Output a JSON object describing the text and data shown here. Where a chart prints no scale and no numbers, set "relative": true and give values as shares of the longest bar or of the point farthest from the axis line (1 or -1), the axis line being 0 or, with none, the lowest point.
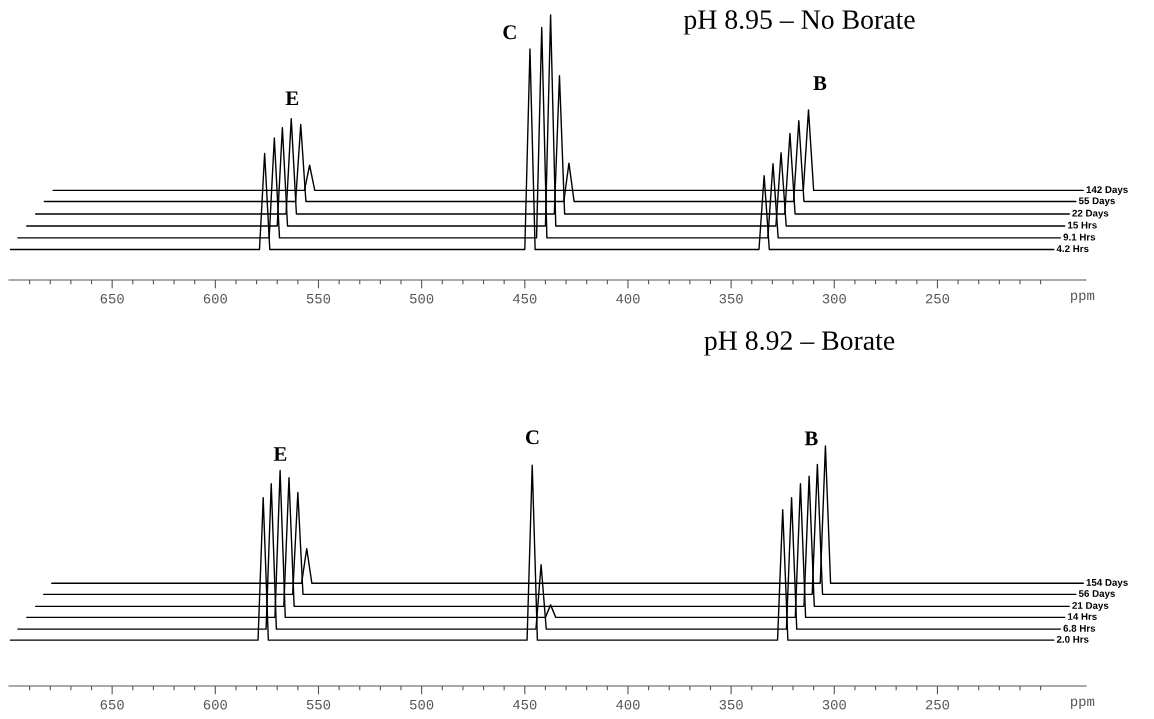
{
  "chart_data": [
    {
      "type": "line",
      "title": "pH 8.95 – No Borate",
      "xlabel": "ppm",
      "relative": true,
      "tick_labels": "x",
      "xlim": [
        700,
        178
      ],
      "xticks": [
        {
          "value": 690,
          "label": null
        },
        {
          "value": 680,
          "label": null
        },
        {
          "value": 670,
          "label": null
        },
        {
          "value": 660,
          "label": null
        },
        650,
        {
          "value": 640,
          "label": null
        },
        {
          "value": 630,
          "label": null
        },
        {
          "value": 620,
          "label": null
        },
        {
          "value": 610,
          "label": null
        },
        600,
        {
          "value": 590,
          "label": null
        },
        {
          "value": 580,
          "label": null
        },
        {
          "value": 570,
          "label": null
        },
        {
          "value": 560,
          "label": null
        },
        550,
        {
          "value": 540,
          "label": null
        },
        {
          "value": 530,
          "label": null
        },
        {
          "value": 520,
          "label": null
        },
        {
          "value": 510,
          "label": null
        },
        500,
        {
          "value": 490,
          "label": null
        },
        {
          "value": 480,
          "label": null
        },
        {
          "value": 470,
          "label": null
        },
        {
          "value": 460,
          "label": null
        },
        450,
        {
          "value": 440,
          "label": null
        },
        {
          "value": 430,
          "label": null
        },
        {
          "value": 420,
          "label": null
        },
        {
          "value": 410,
          "label": null
        },
        400,
        {
          "value": 390,
          "label": null
        },
        {
          "value": 380,
          "label": null
        },
        {
          "value": 370,
          "label": null
        },
        {
          "value": 360,
          "label": null
        },
        350,
        {
          "value": 340,
          "label": null
        },
        {
          "value": 330,
          "label": null
        },
        {
          "value": 320,
          "label": null
        },
        {
          "value": 310,
          "label": null
        },
        300,
        {
          "value": 290,
          "label": null
        },
        {
          "value": 280,
          "label": null
        },
        {
          "value": 270,
          "label": null
        },
        {
          "value": 260,
          "label": null
        },
        250,
        {
          "value": 240,
          "label": null
        },
        {
          "value": 230,
          "label": null
        },
        {
          "value": 220,
          "label": null
        },
        {
          "value": 210,
          "label": null
        },
        {
          "value": 200,
          "label": null
        }
      ],
      "annotations": [
        "E",
        "C",
        "B"
      ],
      "series": [
        {
          "name": "4.2 Hrs",
          "color": "#000000",
          "x": [
            699.3,
            578.6,
            576.1,
            573.6,
            450,
            447.5,
            445,
            336.5,
            334,
            331.5,
            193.6
          ],
          "values": [
            0.115,
            0.115,
            0.478,
            0.115,
            0.115,
            0.872,
            0.115,
            0.115,
            0.394,
            0.115,
            0.115
          ]
        },
        {
          "name": "9.1 Hrs",
          "color": "#000000",
          "x": [
            695.7,
            573.9,
            571.4,
            568.9,
            444.3,
            441.8,
            439.3,
            332.2,
            329.7,
            327.2,
            190.4
          ],
          "values": [
            0.159,
            0.159,
            0.536,
            0.159,
            0.159,
            0.953,
            0.159,
            0.159,
            0.439,
            0.159,
            0.159
          ]
        },
        {
          "name": "15 Hrs",
          "color": "#000000",
          "x": [
            691.4,
            570,
            567.5,
            565,
            440,
            437.5,
            435,
            328.3,
            325.8,
            323.3,
            188.3
          ],
          "values": [
            0.204,
            0.204,
            0.575,
            0.204,
            0.204,
            1.0,
            0.204,
            0.204,
            0.48,
            0.204,
            0.204
          ]
        },
        {
          "name": "22 Days",
          "color": "#000000",
          "x": [
            687.1,
            565.7,
            563.2,
            560.7,
            435.7,
            433.2,
            430.7,
            324,
            321.5,
            319,
            186.1
          ],
          "values": [
            0.249,
            0.249,
            0.609,
            0.249,
            0.249,
            0.771,
            0.249,
            0.249,
            0.553,
            0.249,
            0.249
          ]
        },
        {
          "name": "55 Days",
          "color": "#000000",
          "x": [
            682.9,
            561.1,
            558.6,
            556.1,
            431.1,
            428.6,
            426.1,
            319.7,
            317.2,
            314.7,
            182.9
          ],
          "values": [
            0.296,
            0.296,
            0.587,
            0.296,
            0.296,
            0.441,
            0.296,
            0.296,
            0.601,
            0.296,
            0.296
          ]
        },
        {
          "name": "142 Days",
          "color": "#000000",
          "x": [
            678.6,
            556.8,
            554.3,
            551.8,
            315,
            312.5,
            310,
            179.3
          ],
          "values": [
            0.338,
            0.338,
            0.433,
            0.338,
            0.338,
            0.642,
            0.338,
            0.338
          ]
        }
      ]
    },
    {
      "type": "line",
      "title": "pH 8.92 – Borate",
      "xlabel": "ppm",
      "relative": true,
      "tick_labels": "x",
      "xlim": [
        700,
        178
      ],
      "xticks": [
        {
          "value": 690,
          "label": null
        },
        {
          "value": 680,
          "label": null
        },
        {
          "value": 670,
          "label": null
        },
        {
          "value": 660,
          "label": null
        },
        650,
        {
          "value": 640,
          "label": null
        },
        {
          "value": 630,
          "label": null
        },
        {
          "value": 620,
          "label": null
        },
        {
          "value": 610,
          "label": null
        },
        600,
        {
          "value": 590,
          "label": null
        },
        {
          "value": 580,
          "label": null
        },
        {
          "value": 570,
          "label": null
        },
        {
          "value": 560,
          "label": null
        },
        550,
        {
          "value": 540,
          "label": null
        },
        {
          "value": 530,
          "label": null
        },
        {
          "value": 520,
          "label": null
        },
        {
          "value": 510,
          "label": null
        },
        500,
        {
          "value": 490,
          "label": null
        },
        {
          "value": 480,
          "label": null
        },
        {
          "value": 470,
          "label": null
        },
        {
          "value": 460,
          "label": null
        },
        450,
        {
          "value": 440,
          "label": null
        },
        {
          "value": 430,
          "label": null
        },
        {
          "value": 420,
          "label": null
        },
        {
          "value": 410,
          "label": null
        },
        400,
        {
          "value": 390,
          "label": null
        },
        {
          "value": 380,
          "label": null
        },
        {
          "value": 370,
          "label": null
        },
        {
          "value": 360,
          "label": null
        },
        350,
        {
          "value": 340,
          "label": null
        },
        {
          "value": 330,
          "label": null
        },
        {
          "value": 320,
          "label": null
        },
        {
          "value": 310,
          "label": null
        },
        300,
        {
          "value": 290,
          "label": null
        },
        {
          "value": 280,
          "label": null
        },
        {
          "value": 270,
          "label": null
        },
        {
          "value": 260,
          "label": null
        },
        250,
        {
          "value": 240,
          "label": null
        },
        {
          "value": 230,
          "label": null
        },
        {
          "value": 220,
          "label": null
        },
        {
          "value": 210,
          "label": null
        },
        {
          "value": 200,
          "label": null
        }
      ],
      "annotations": [
        "E",
        "C",
        "B"
      ],
      "series": [
        {
          "name": "2.0 Hrs",
          "color": "#000000",
          "x": [
            699.3,
            579.3,
            576.8,
            574.3,
            448.9,
            446.4,
            443.9,
            327.5,
            325,
            322.5,
            193.6
          ],
          "values": [
            0.191,
            0.191,
            0.785,
            0.191,
            0.191,
            0.92,
            0.191,
            0.191,
            0.735,
            0.191,
            0.191
          ]
        },
        {
          "name": "6.8 Hrs",
          "color": "#000000",
          "x": [
            695.7,
            575.4,
            572.9,
            570.4,
            444.6,
            442.1,
            439.6,
            323.2,
            320.7,
            318.2,
            190.4
          ],
          "values": [
            0.237,
            0.237,
            0.843,
            0.237,
            0.237,
            0.505,
            0.237,
            0.237,
            0.785,
            0.237,
            0.237
          ]
        },
        {
          "name": "14 Hrs",
          "color": "#000000",
          "x": [
            691.4,
            571.1,
            568.6,
            566.1,
            440,
            437.5,
            435,
            318.9,
            316.4,
            313.9,
            188.3
          ],
          "values": [
            0.286,
            0.286,
            0.898,
            0.286,
            0.286,
            0.338,
            0.286,
            0.286,
            0.843,
            0.286,
            0.286
          ]
        },
        {
          "name": "21 Days",
          "color": "#000000",
          "x": [
            687.1,
            566.8,
            564.3,
            561.8,
            314.7,
            312.2,
            309.7,
            186.1
          ],
          "values": [
            0.332,
            0.332,
            0.868,
            0.332,
            0.332,
            0.874,
            0.332,
            0.332
          ]
        },
        {
          "name": "56 Days",
          "color": "#000000",
          "x": [
            683.2,
            562.5,
            560,
            557.5,
            310.7,
            308.2,
            305.7,
            182.9
          ],
          "values": [
            0.382,
            0.382,
            0.806,
            0.382,
            0.382,
            0.923,
            0.382,
            0.382
          ]
        },
        {
          "name": "154 Days",
          "color": "#000000",
          "x": [
            679.3,
            558.2,
            555.7,
            553.2,
            306.8,
            304.3,
            301.8,
            179.3
          ],
          "values": [
            0.428,
            0.428,
            0.572,
            0.428,
            0.428,
            1.0,
            0.428,
            0.428
          ]
        }
      ]
    }
  ]
}
